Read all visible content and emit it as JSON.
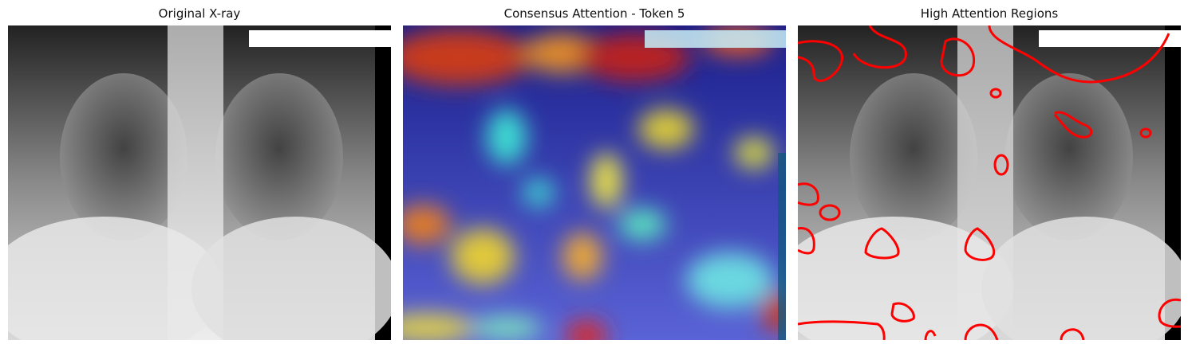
{
  "panels": [
    {
      "title": "Original X-ray"
    },
    {
      "title": "Consensus Attention - Token 5"
    },
    {
      "title": "High Attention Regions"
    }
  ],
  "colors": {
    "contour": "#ff0000",
    "heat_low": "#00008b",
    "heat_mid": "#3cdcd2",
    "heat_high": "#d21e1e"
  }
}
